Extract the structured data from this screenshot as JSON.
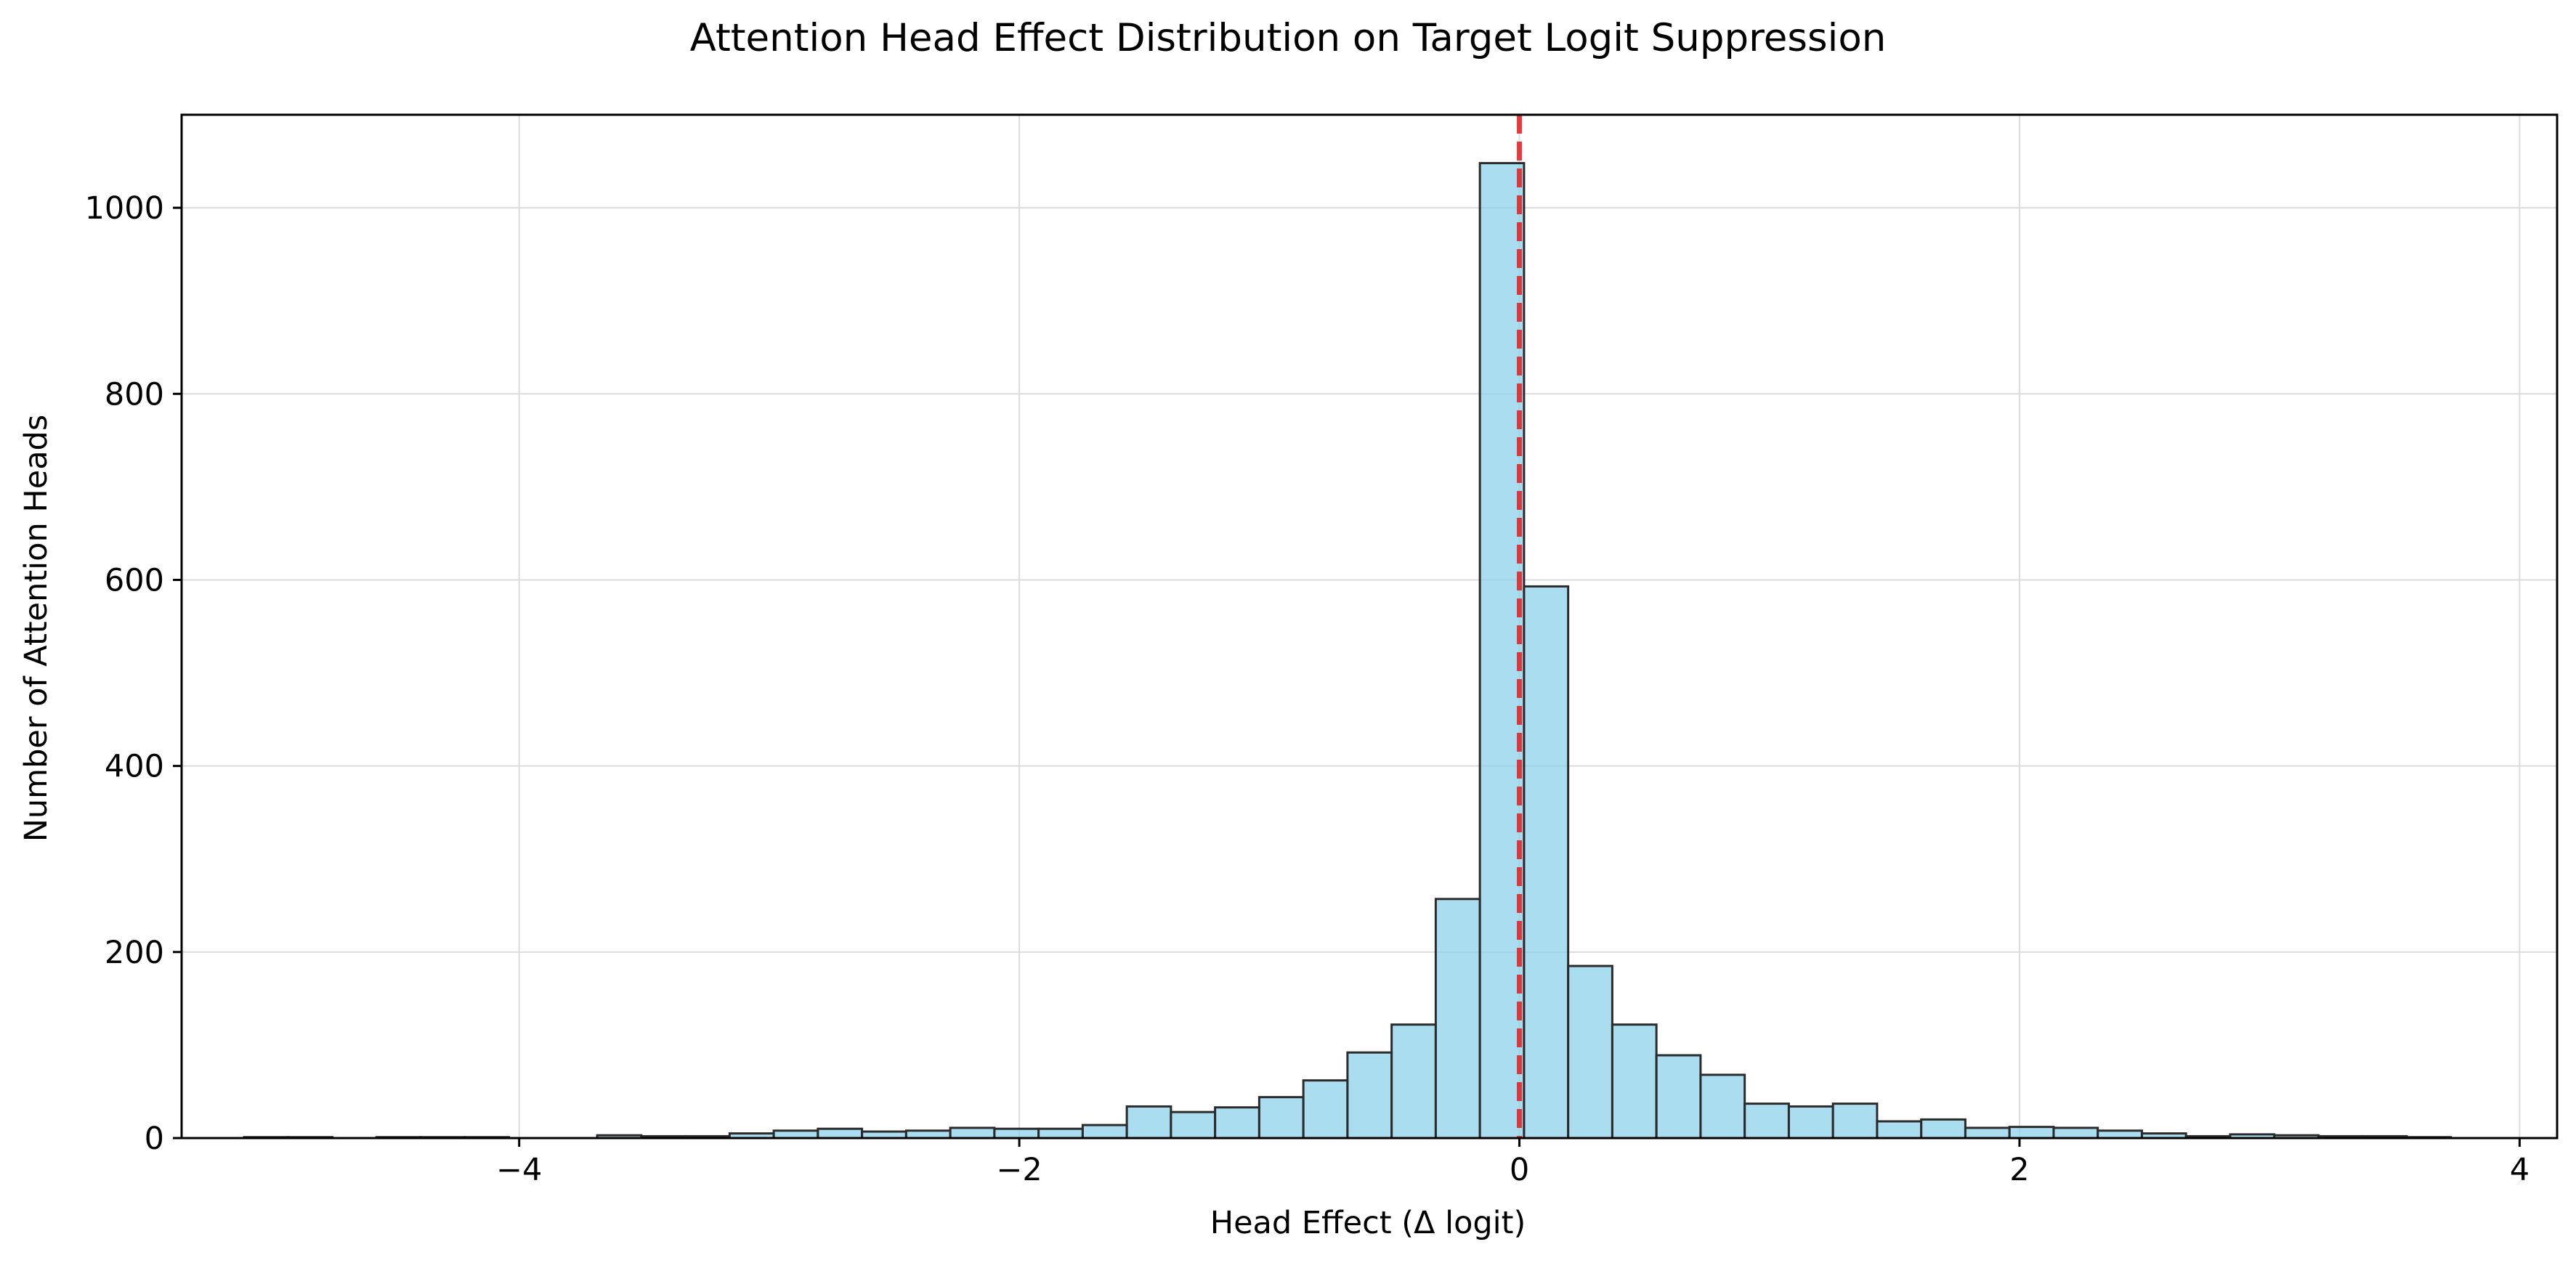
{
  "chart_data": {
    "type": "bar",
    "title": "Attention Head Effect Distribution on Target Logit Suppression",
    "xlabel": "Head Effect (Δ logit)",
    "ylabel": "Number of Attention Heads",
    "xlim": [
      -5.35,
      4.15
    ],
    "ylim": [
      0,
      1100
    ],
    "xticks": [
      -4,
      -2,
      0,
      2,
      4
    ],
    "xtick_labels": [
      "−4",
      "−2",
      "0",
      "2",
      "4"
    ],
    "yticks": [
      0,
      200,
      400,
      600,
      800,
      1000
    ],
    "ytick_labels": [
      "0",
      "200",
      "400",
      "600",
      "800",
      "1000"
    ],
    "grid": true,
    "bin_start": -5.1,
    "bin_width": 0.1765,
    "bin_counts": [
      1,
      1,
      0,
      1,
      1,
      1,
      0,
      0,
      3,
      2,
      2,
      5,
      8,
      10,
      7,
      8,
      11,
      10,
      10,
      14,
      34,
      28,
      33,
      44,
      62,
      92,
      122,
      257,
      1048,
      593,
      185,
      122,
      89,
      68,
      37,
      34,
      37,
      18,
      20,
      11,
      12,
      11,
      8,
      5,
      2,
      4,
      3,
      2,
      2,
      1
    ],
    "bar_fill": "#87CEEB",
    "bar_edge": "#2b2b2b",
    "reference_line": {
      "x": 0,
      "color": "#e41a1c",
      "style": "dashed"
    }
  }
}
